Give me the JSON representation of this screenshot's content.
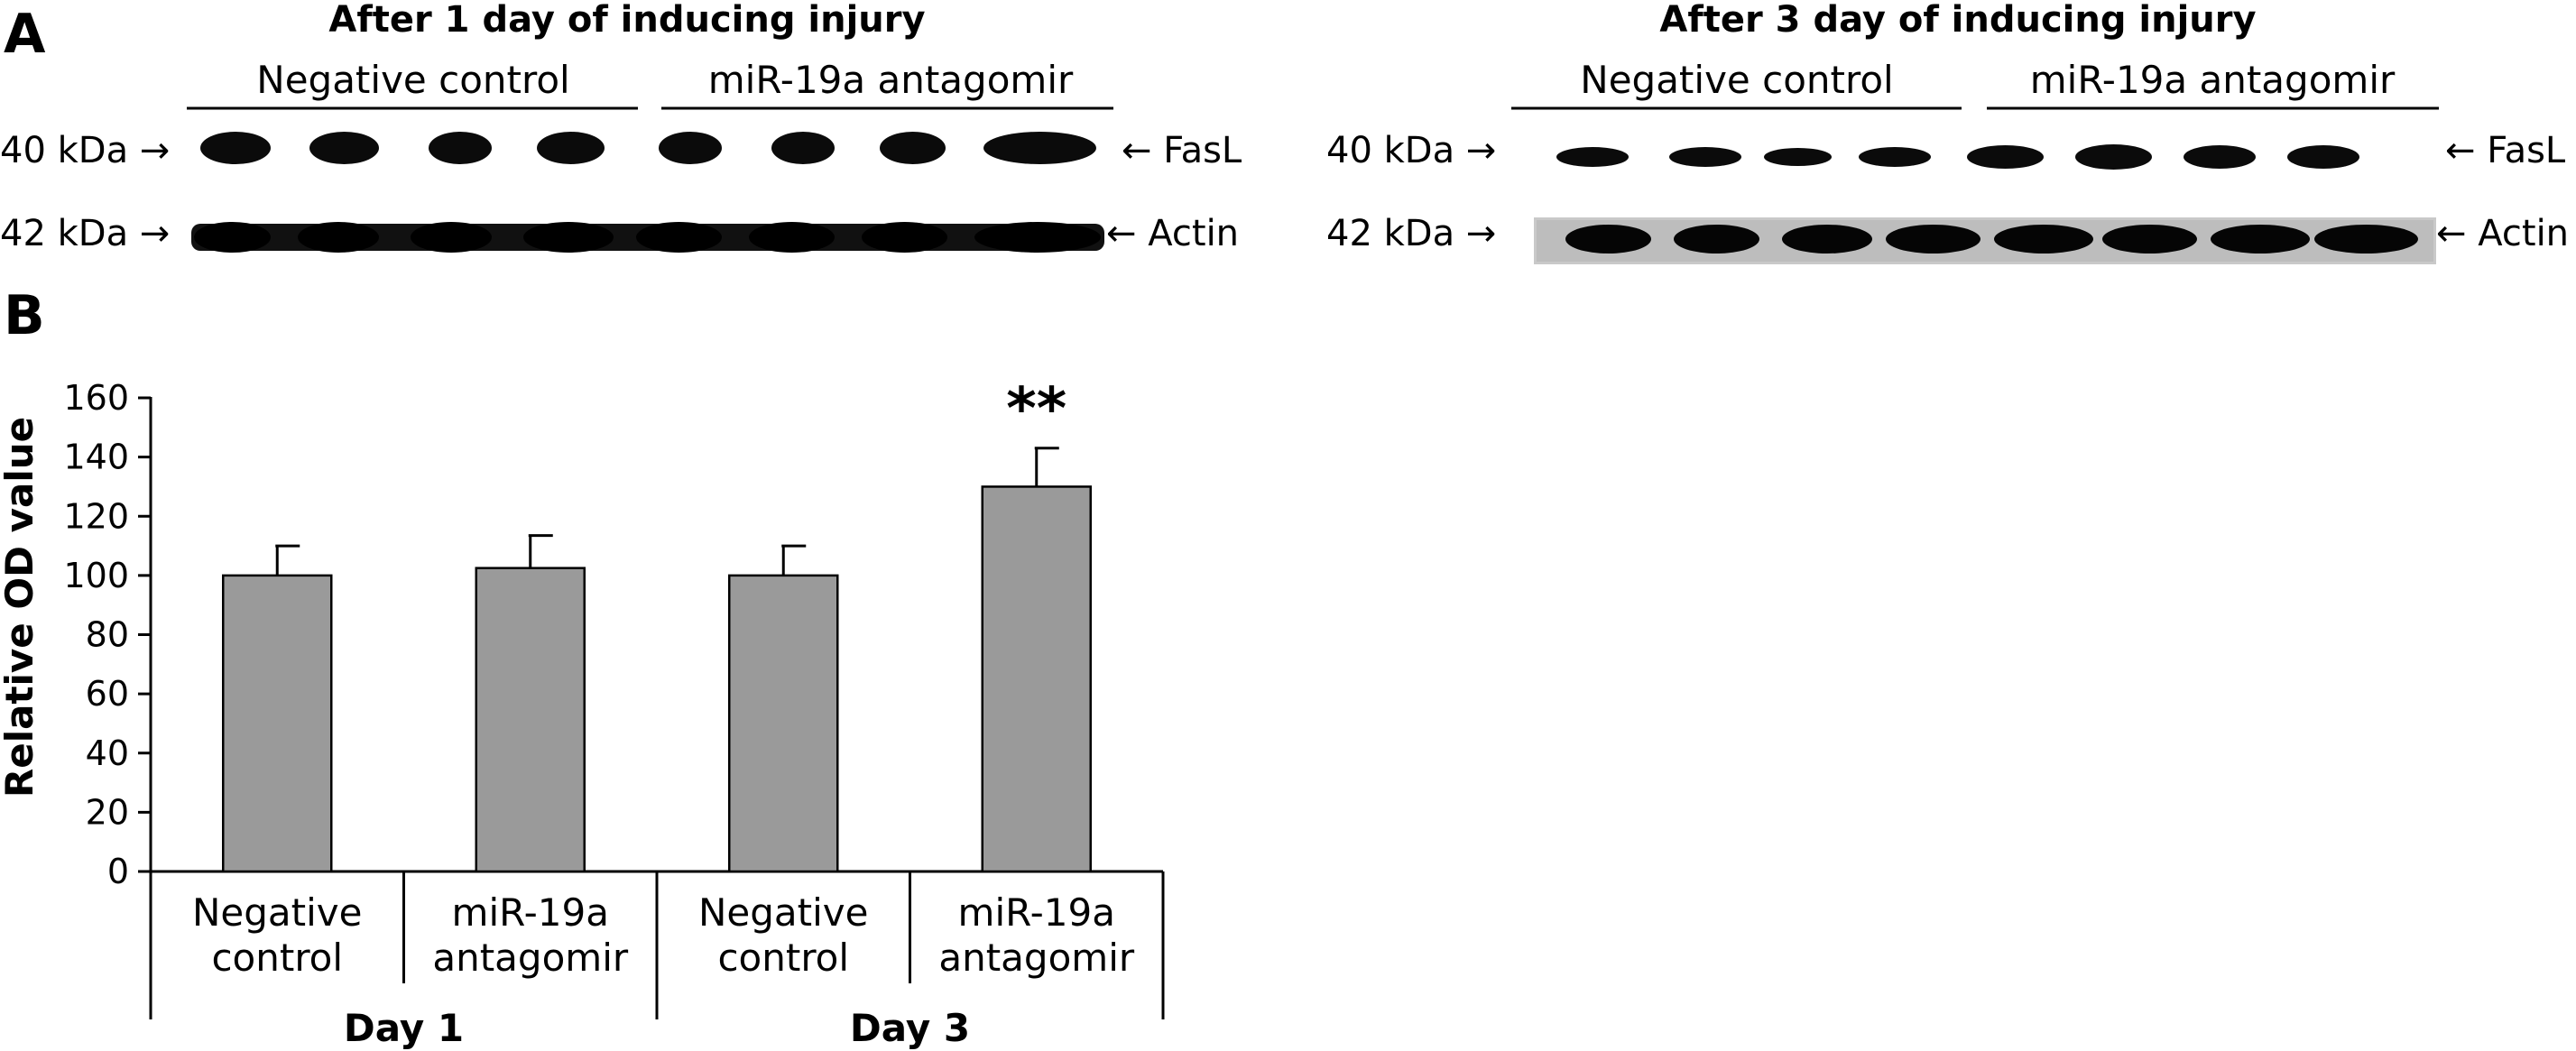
{
  "panels": {
    "a": "A",
    "b": "B"
  },
  "blot_left": {
    "title": "After 1 day of inducing injury",
    "groups": [
      "Negative control",
      "miR-19a antagomir"
    ],
    "rows": [
      {
        "marker": "40 kDa →",
        "protein": "← FasL"
      },
      {
        "marker": "42 kDa →",
        "protein": "← Actin"
      }
    ]
  },
  "blot_right": {
    "title": "After 3 day of inducing injury",
    "groups": [
      "Negative control",
      "miR-19a antagomir"
    ],
    "rows": [
      {
        "marker": "40 kDa →",
        "protein": "← FasL"
      },
      {
        "marker": "42 kDa →",
        "protein": "← Actin"
      }
    ]
  },
  "chart_data": {
    "type": "bar",
    "ylabel": "Relative OD value",
    "xlabel": "",
    "ylim": [
      0,
      160
    ],
    "yticks": [
      0,
      20,
      40,
      60,
      80,
      100,
      120,
      140,
      160
    ],
    "categories": [
      [
        "Negative",
        "control"
      ],
      [
        "miR-19a",
        "antagomir"
      ],
      [
        "Negative",
        "control"
      ],
      [
        "miR-19a",
        "antagomir"
      ]
    ],
    "groups": [
      {
        "label": "Day 1",
        "indices": [
          0,
          1
        ]
      },
      {
        "label": "Day 3",
        "indices": [
          2,
          3
        ]
      }
    ],
    "values": [
      100,
      102.5,
      100,
      130
    ],
    "errors": [
      10,
      11,
      10,
      13
    ],
    "significance": [
      "",
      "",
      "",
      "**"
    ],
    "bar_color": "#9a9a9a",
    "grid": false
  }
}
